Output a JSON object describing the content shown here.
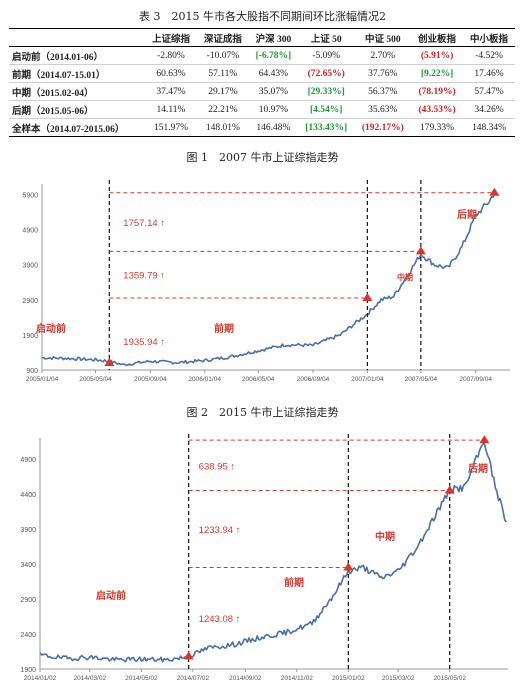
{
  "table": {
    "title": "表 3　2015 牛市各大股指不同期间环比涨幅情况2",
    "headers": [
      "",
      "上证综指",
      "深证成指",
      "沪深 300",
      "上证 50",
      "中证 500",
      "创业板指",
      "中小板指"
    ],
    "rows": [
      {
        "label": "启动前（2014.01-06）",
        "cells": [
          {
            "v": "-2.80%",
            "h": ""
          },
          {
            "v": "-10.07%",
            "h": ""
          },
          {
            "v": "[-6.78%]",
            "h": "green"
          },
          {
            "v": "-5.09%",
            "h": ""
          },
          {
            "v": "2.70%",
            "h": ""
          },
          {
            "v": "(5.91%)",
            "h": "red"
          },
          {
            "v": "-4.52%",
            "h": ""
          }
        ]
      },
      {
        "label": "前期（2014.07-15.01）",
        "cells": [
          {
            "v": "60.63%",
            "h": ""
          },
          {
            "v": "57.11%",
            "h": ""
          },
          {
            "v": "64.43%",
            "h": ""
          },
          {
            "v": "(72.65%)",
            "h": "red"
          },
          {
            "v": "37.76%",
            "h": ""
          },
          {
            "v": "[9.22%]",
            "h": "green"
          },
          {
            "v": "17.46%",
            "h": ""
          }
        ]
      },
      {
        "label": "中期（2015.02-04）",
        "cells": [
          {
            "v": "37.47%",
            "h": ""
          },
          {
            "v": "29.17%",
            "h": ""
          },
          {
            "v": "35.07%",
            "h": ""
          },
          {
            "v": "[29.33%]",
            "h": "green"
          },
          {
            "v": "56.37%",
            "h": ""
          },
          {
            "v": "(78.19%)",
            "h": "red"
          },
          {
            "v": "57.47%",
            "h": ""
          }
        ]
      },
      {
        "label": "后期（2015.05-06）",
        "cells": [
          {
            "v": "14.11%",
            "h": ""
          },
          {
            "v": "22.21%",
            "h": ""
          },
          {
            "v": "10.97%",
            "h": ""
          },
          {
            "v": "[4.54%]",
            "h": "green"
          },
          {
            "v": "35.63%",
            "h": ""
          },
          {
            "v": "(43.53%)",
            "h": "red"
          },
          {
            "v": "34.26%",
            "h": ""
          }
        ]
      },
      {
        "label": "全样本（2014.07-2015.06）",
        "cells": [
          {
            "v": "151.97%",
            "h": ""
          },
          {
            "v": "148.01%",
            "h": ""
          },
          {
            "v": "146.48%",
            "h": ""
          },
          {
            "v": "[133.43%]",
            "h": "green"
          },
          {
            "v": "(192.17%)",
            "h": "red"
          },
          {
            "v": "179.33%",
            "h": ""
          },
          {
            "v": "148.34%",
            "h": ""
          }
        ]
      }
    ]
  },
  "figure1": {
    "caption": "图 1　2007 牛市上证综指走势",
    "annotations": {
      "a1": "1757.14 ↑",
      "a2": "1359.79 ↑",
      "a3": "1935.94 ↑"
    },
    "phases": {
      "p1": "启动前",
      "p2": "前期",
      "p3": "中期",
      "p4": "后期"
    }
  },
  "figure2": {
    "caption": "图 2　2015 牛市上证综指走势",
    "annotations": {
      "a1": "638.95 ↑",
      "a2": "1233.94 ↑",
      "a3": "1243.08 ↑"
    },
    "phases": {
      "p1": "启动前",
      "p2": "前期",
      "p3": "中期",
      "p4": "后期"
    }
  },
  "chart_data": [
    {
      "type": "line",
      "title": "图 1　2007 牛市上证综指走势",
      "x_ticks": [
        "2005/01/04",
        "2005/05/04",
        "2005/09/04",
        "2006/01/04",
        "2006/05/04",
        "2006/09/04",
        "2007/01/04",
        "2007/05/04",
        "2007/09/04"
      ],
      "y_ticks": [
        900,
        1900,
        2900,
        3900,
        4900,
        5900
      ],
      "ylim": [
        900,
        6200
      ],
      "series": [
        {
          "x": [
            "2005/01/04",
            "2005/03/04",
            "2005/05/04",
            "2005/06/04",
            "2005/07/04",
            "2005/09/04",
            "2005/11/04",
            "2006/01/04",
            "2006/03/04",
            "2006/05/04",
            "2006/07/04",
            "2006/09/04",
            "2006/11/04",
            "2007/01/04",
            "2007/02/04",
            "2007/03/04",
            "2007/04/04",
            "2007/05/04",
            "2007/06/04",
            "2007/07/04",
            "2007/08/04",
            "2007/09/04",
            "2007/10/04",
            "2007/10/16"
          ],
          "values": [
            1250,
            1230,
            1190,
            1150,
            1050,
            1150,
            1110,
            1170,
            1280,
            1450,
            1620,
            1600,
            1900,
            2500,
            2900,
            3000,
            3600,
            4200,
            3900,
            3800,
            4400,
            5300,
            5700,
            5950
          ]
        }
      ],
      "markers": [
        {
          "x": "2005/06/04",
          "y": 1100
        },
        {
          "x": "2007/01/04",
          "y": 2950
        },
        {
          "x": "2007/05/04",
          "y": 4280
        },
        {
          "x": "2007/10/16",
          "y": 5950
        }
      ],
      "xlabel": "",
      "ylabel": "",
      "grid": false
    },
    {
      "type": "line",
      "title": "图 2　2015 牛市上证综指走势",
      "x_ticks": [
        "2014/01/02",
        "2014/03/02",
        "2014/05/02",
        "2014/07/02",
        "2014/09/02",
        "2014/11/02",
        "2015/01/02",
        "2015/03/02",
        "2015/05/02"
      ],
      "y_ticks": [
        1900,
        2400,
        2900,
        3400,
        3900,
        4400,
        4900
      ],
      "ylim": [
        1900,
        5200
      ],
      "series": [
        {
          "x": [
            "2014/01/02",
            "2014/02/02",
            "2014/03/02",
            "2014/04/02",
            "2014/05/02",
            "2014/06/02",
            "2014/06/27",
            "2014/07/20",
            "2014/08/20",
            "2014/09/20",
            "2014/10/20",
            "2014/11/20",
            "2014/12/15",
            "2015/01/02",
            "2015/01/20",
            "2015/02/10",
            "2015/03/02",
            "2015/03/25",
            "2015/04/15",
            "2015/05/02",
            "2015/05/20",
            "2015/06/12",
            "2015/06/25",
            "2015/07/08"
          ],
          "values": [
            2100,
            2050,
            2070,
            2030,
            2040,
            2030,
            2080,
            2200,
            2250,
            2350,
            2420,
            2550,
            2950,
            3300,
            3350,
            3200,
            3300,
            3650,
            4100,
            4450,
            4500,
            5170,
            4500,
            4000
          ]
        }
      ],
      "markers": [
        {
          "x": "2014/06/27",
          "y": 2080
        },
        {
          "x": "2015/01/02",
          "y": 3350
        },
        {
          "x": "2015/05/02",
          "y": 4450
        },
        {
          "x": "2015/06/12",
          "y": 5170
        }
      ],
      "xlabel": "",
      "ylabel": "",
      "grid": false
    }
  ]
}
